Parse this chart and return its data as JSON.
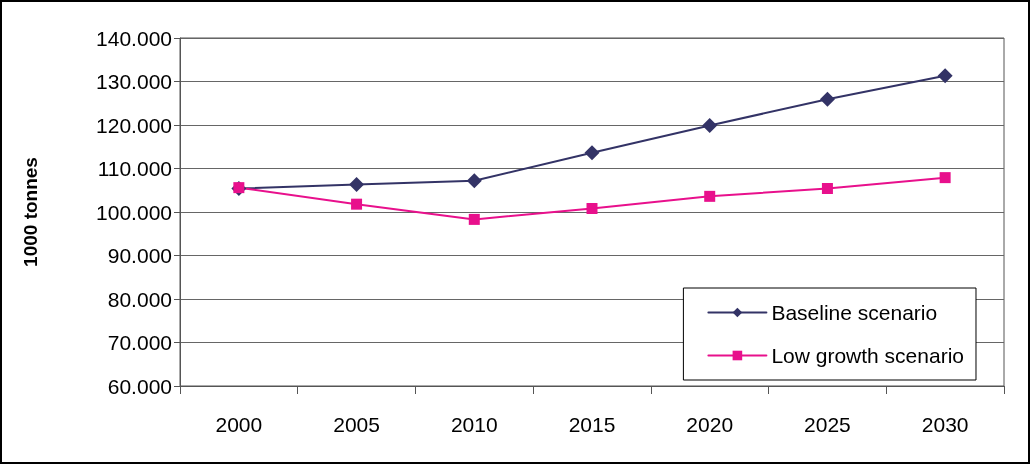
{
  "chart_data": {
    "type": "line",
    "ylabel": "1000 tonnes",
    "categories": [
      "2000",
      "2005",
      "2010",
      "2015",
      "2020",
      "2025",
      "2030"
    ],
    "series": [
      {
        "name": "Baseline scenario",
        "color": "#333366",
        "marker": "diamond",
        "values": [
          105400,
          106300,
          107200,
          113600,
          119900,
          125900,
          131300
        ]
      },
      {
        "name": "Low growth scenario",
        "color": "#e8108c",
        "marker": "square",
        "values": [
          105600,
          101800,
          98300,
          100800,
          103600,
          105400,
          107900
        ]
      }
    ],
    "ylim": [
      60000,
      140000
    ],
    "yticks": [
      {
        "value": 60000,
        "label": "60.000"
      },
      {
        "value": 70000,
        "label": "70.000"
      },
      {
        "value": 80000,
        "label": "80.000"
      },
      {
        "value": 90000,
        "label": "90.000"
      },
      {
        "value": 100000,
        "label": "100.000"
      },
      {
        "value": 110000,
        "label": "110.000"
      },
      {
        "value": 120000,
        "label": "120.000"
      },
      {
        "value": 130000,
        "label": "130.000"
      },
      {
        "value": 140000,
        "label": "140.000"
      }
    ],
    "grid": "y",
    "legend": "bottom right",
    "line_style": "solid"
  }
}
